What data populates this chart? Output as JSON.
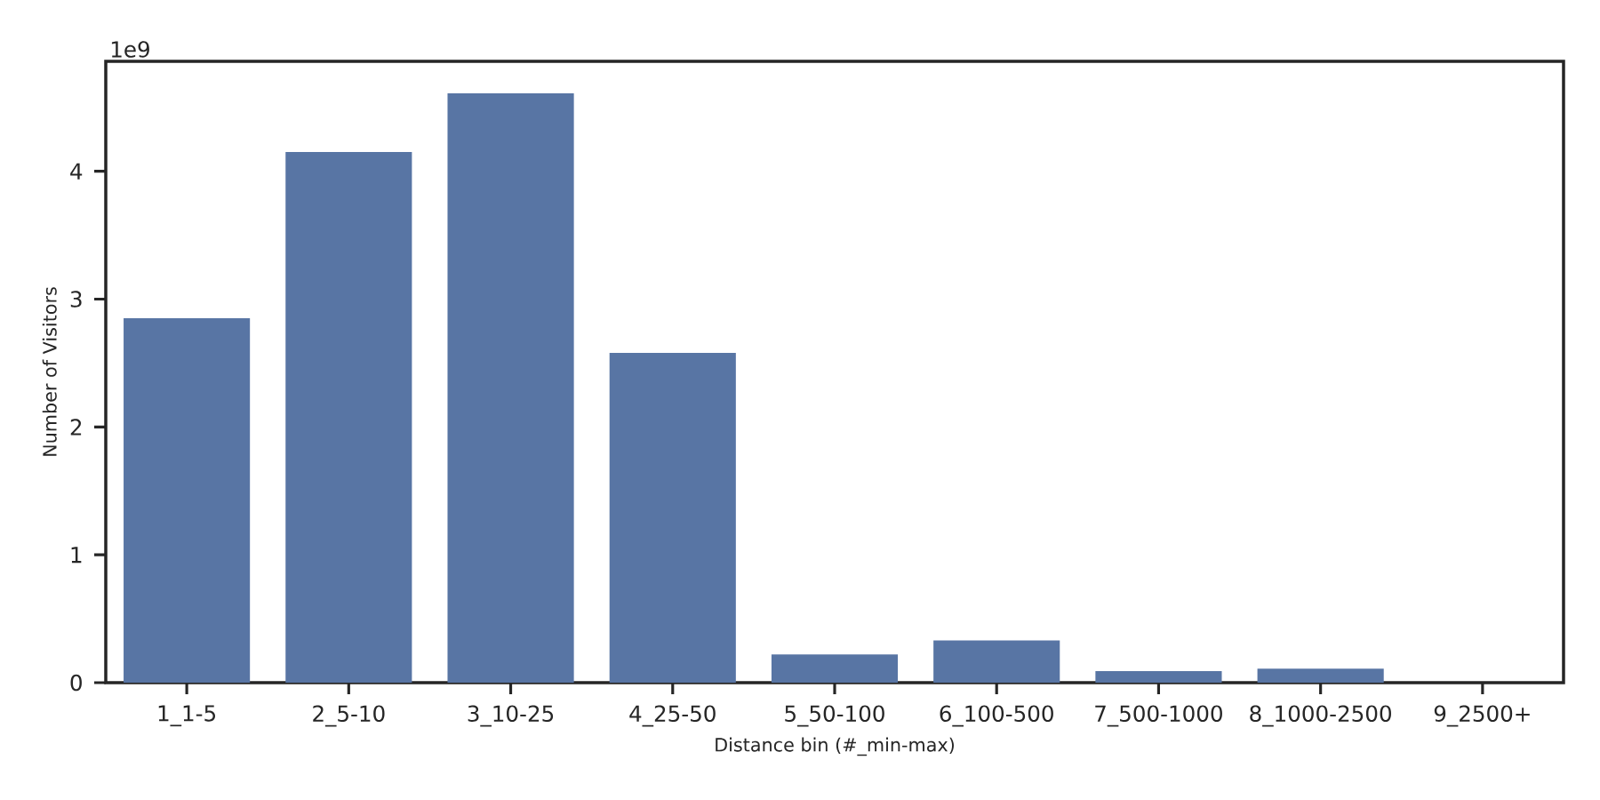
{
  "chart_data": {
    "type": "bar",
    "xlabel": "Distance bin (#_min-max)",
    "ylabel": "Number of Visitors",
    "categories": [
      "1_1-5",
      "2_5-10",
      "3_10-25",
      "4_25-50",
      "5_50-100",
      "6_100-500",
      "7_500-1000",
      "8_1000-2500",
      "9_2500+"
    ],
    "values": [
      2.85,
      4.15,
      4.61,
      2.58,
      0.22,
      0.33,
      0.09,
      0.11,
      0
    ],
    "color": "#5875a4",
    "ylim": [
      0,
      4.86
    ],
    "yticks": [
      0,
      1,
      2,
      3,
      4
    ],
    "annotations": [
      "1e9"
    ],
    "grid": false
  }
}
